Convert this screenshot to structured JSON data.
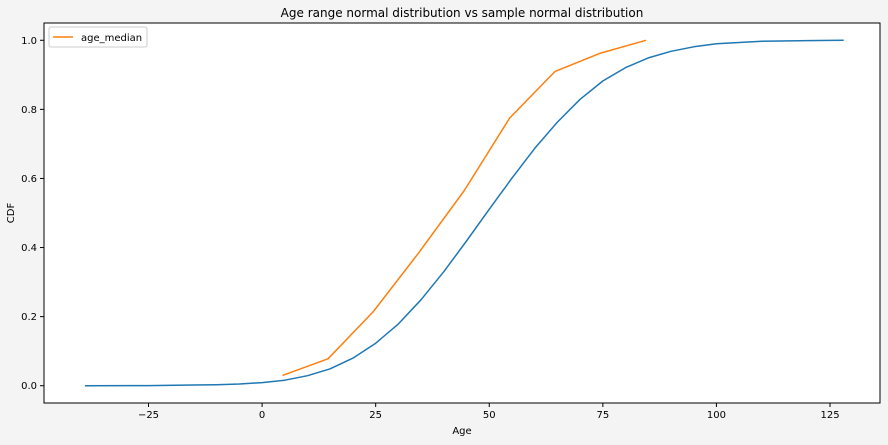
{
  "chart_data": {
    "type": "line",
    "title": "Age range normal distribution vs sample normal distribution",
    "xlabel": "Age",
    "ylabel": "CDF",
    "xlim": [
      -48,
      136
    ],
    "ylim": [
      -0.05,
      1.05
    ],
    "xticks": [
      -25,
      0,
      25,
      50,
      75,
      100,
      125
    ],
    "yticks": [
      0.0,
      0.2,
      0.4,
      0.6,
      0.8,
      1.0
    ],
    "xtick_labels": [
      "−25",
      "0",
      "25",
      "50",
      "75",
      "100",
      "125"
    ],
    "ytick_labels": [
      "0.0",
      "0.2",
      "0.4",
      "0.6",
      "0.8",
      "1.0"
    ],
    "grid": false,
    "legend_position": "upper-left",
    "series": [
      {
        "key": "normal",
        "color": "#1f77b4",
        "x": [
          -39,
          -25,
          -15,
          -10,
          -5,
          0,
          5,
          10,
          15,
          20,
          25,
          30,
          35,
          40,
          45,
          50,
          55,
          60,
          65,
          70,
          75,
          80,
          85,
          90,
          95,
          100,
          110,
          120,
          128
        ],
        "y": [
          0.0,
          0.0005,
          0.002,
          0.003,
          0.005,
          0.009,
          0.016,
          0.029,
          0.049,
          0.08,
          0.123,
          0.179,
          0.249,
          0.33,
          0.419,
          0.511,
          0.601,
          0.687,
          0.763,
          0.829,
          0.882,
          0.921,
          0.949,
          0.968,
          0.981,
          0.99,
          0.997,
          0.999,
          1.0
        ]
      },
      {
        "key": "sample",
        "name": "age_median",
        "color": "#ff7f0e",
        "x": [
          4.5,
          14.5,
          24.5,
          34.5,
          44.5,
          54.5,
          64.5,
          74.5,
          84.5
        ],
        "y": [
          0.03,
          0.078,
          0.215,
          0.385,
          0.565,
          0.775,
          0.91,
          0.963,
          1.0
        ]
      }
    ]
  }
}
